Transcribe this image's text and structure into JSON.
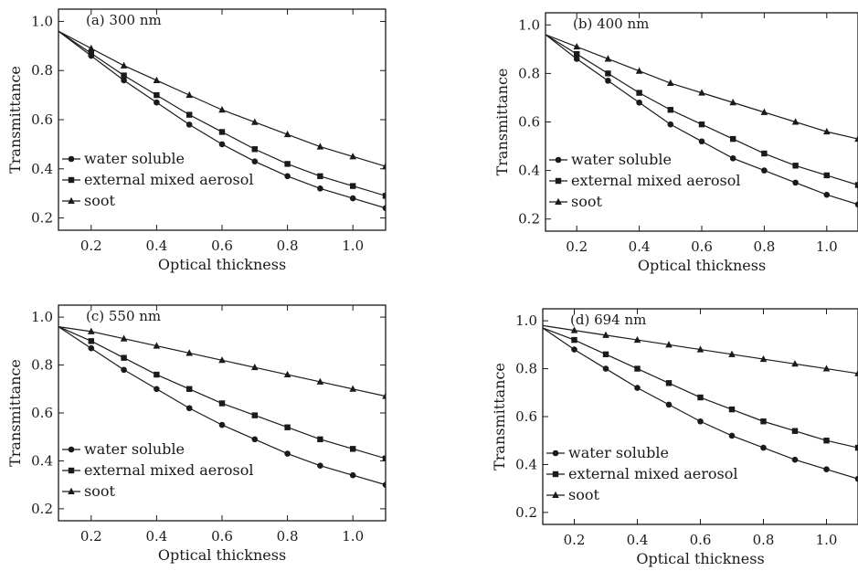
{
  "chart_data": [
    {
      "type": "line",
      "title": "(a) 300 nm",
      "xlabel": "Optical thickness",
      "ylabel": "Transmittance",
      "xlim": [
        0.1,
        1.1
      ],
      "ylim": [
        0.15,
        1.05
      ],
      "xticks": [
        0.2,
        0.4,
        0.6,
        0.8,
        1.0
      ],
      "yticks": [
        0.2,
        0.4,
        0.6,
        0.8,
        1.0
      ],
      "x": [
        0.1,
        0.2,
        0.3,
        0.4,
        0.5,
        0.6,
        0.7,
        0.8,
        0.9,
        1.0,
        1.1
      ],
      "legend_position": "lower-left",
      "series": [
        {
          "name": "water soluble",
          "marker": "circle",
          "values": [
            0.96,
            0.86,
            0.76,
            0.67,
            0.58,
            0.5,
            0.43,
            0.37,
            0.32,
            0.28,
            0.24
          ]
        },
        {
          "name": "external mixed aerosol",
          "marker": "square",
          "values": [
            0.96,
            0.87,
            0.78,
            0.7,
            0.62,
            0.55,
            0.48,
            0.42,
            0.37,
            0.33,
            0.29
          ]
        },
        {
          "name": "soot",
          "marker": "triangle",
          "values": [
            0.96,
            0.89,
            0.82,
            0.76,
            0.7,
            0.64,
            0.59,
            0.54,
            0.49,
            0.45,
            0.41
          ]
        }
      ]
    },
    {
      "type": "line",
      "title": "(b) 400 nm",
      "xlabel": "Optical thickness",
      "ylabel": "Transmittance",
      "xlim": [
        0.1,
        1.1
      ],
      "ylim": [
        0.15,
        1.05
      ],
      "xticks": [
        0.2,
        0.4,
        0.6,
        0.8,
        1.0
      ],
      "yticks": [
        0.2,
        0.4,
        0.6,
        0.8,
        1.0
      ],
      "x": [
        0.1,
        0.2,
        0.3,
        0.4,
        0.5,
        0.6,
        0.7,
        0.8,
        0.9,
        1.0,
        1.1
      ],
      "legend_position": "lower-left",
      "series": [
        {
          "name": "water soluble",
          "marker": "circle",
          "values": [
            0.96,
            0.86,
            0.77,
            0.68,
            0.59,
            0.52,
            0.45,
            0.4,
            0.35,
            0.3,
            0.26
          ]
        },
        {
          "name": "external mixed aerosol",
          "marker": "square",
          "values": [
            0.96,
            0.88,
            0.8,
            0.72,
            0.65,
            0.59,
            0.53,
            0.47,
            0.42,
            0.38,
            0.34
          ]
        },
        {
          "name": "soot",
          "marker": "triangle",
          "values": [
            0.96,
            0.91,
            0.86,
            0.81,
            0.76,
            0.72,
            0.68,
            0.64,
            0.6,
            0.56,
            0.53
          ]
        }
      ]
    },
    {
      "type": "line",
      "title": "(c) 550 nm",
      "xlabel": "Optical thickness",
      "ylabel": "Transmittance",
      "xlim": [
        0.1,
        1.1
      ],
      "ylim": [
        0.15,
        1.05
      ],
      "xticks": [
        0.2,
        0.4,
        0.6,
        0.8,
        1.0
      ],
      "yticks": [
        0.2,
        0.4,
        0.6,
        0.8,
        1.0
      ],
      "x": [
        0.1,
        0.2,
        0.3,
        0.4,
        0.5,
        0.6,
        0.7,
        0.8,
        0.9,
        1.0,
        1.1
      ],
      "legend_position": "lower-left",
      "series": [
        {
          "name": "water soluble",
          "marker": "circle",
          "values": [
            0.96,
            0.87,
            0.78,
            0.7,
            0.62,
            0.55,
            0.49,
            0.43,
            0.38,
            0.34,
            0.3
          ]
        },
        {
          "name": "external mixed aerosol",
          "marker": "square",
          "values": [
            0.96,
            0.9,
            0.83,
            0.76,
            0.7,
            0.64,
            0.59,
            0.54,
            0.49,
            0.45,
            0.41
          ]
        },
        {
          "name": "soot",
          "marker": "triangle",
          "values": [
            0.96,
            0.94,
            0.91,
            0.88,
            0.85,
            0.82,
            0.79,
            0.76,
            0.73,
            0.7,
            0.67
          ]
        }
      ]
    },
    {
      "type": "line",
      "title": "(d) 694 nm",
      "xlabel": "Optical thickness",
      "ylabel": "Transmittance",
      "xlim": [
        0.1,
        1.1
      ],
      "ylim": [
        0.15,
        1.05
      ],
      "xticks": [
        0.2,
        0.4,
        0.6,
        0.8,
        1.0
      ],
      "yticks": [
        0.2,
        0.4,
        0.6,
        0.8,
        1.0
      ],
      "x": [
        0.1,
        0.2,
        0.3,
        0.4,
        0.5,
        0.6,
        0.7,
        0.8,
        0.9,
        1.0,
        1.1
      ],
      "legend_position": "lower-left",
      "series": [
        {
          "name": "water soluble",
          "marker": "circle",
          "values": [
            0.97,
            0.88,
            0.8,
            0.72,
            0.65,
            0.58,
            0.52,
            0.47,
            0.42,
            0.38,
            0.34
          ]
        },
        {
          "name": "external mixed aerosol",
          "marker": "square",
          "values": [
            0.97,
            0.92,
            0.86,
            0.8,
            0.74,
            0.68,
            0.63,
            0.58,
            0.54,
            0.5,
            0.47
          ]
        },
        {
          "name": "soot",
          "marker": "triangle",
          "values": [
            0.98,
            0.96,
            0.94,
            0.92,
            0.9,
            0.88,
            0.86,
            0.84,
            0.82,
            0.8,
            0.78
          ]
        }
      ]
    }
  ]
}
